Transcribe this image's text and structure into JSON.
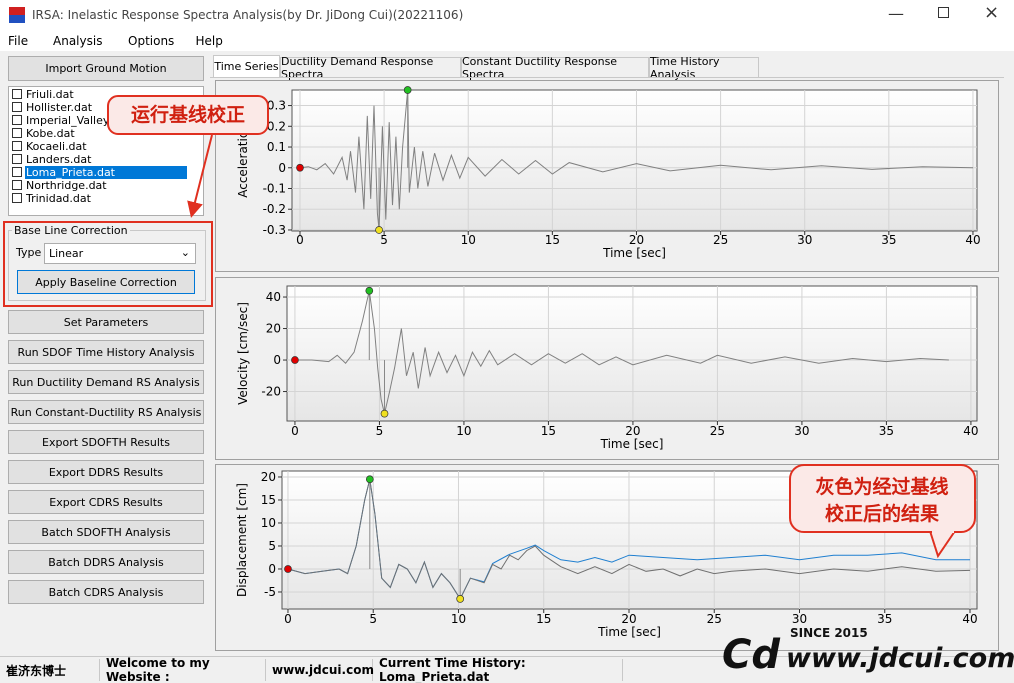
{
  "window": {
    "title": "IRSA: Inelastic Response Spectra Analysis(by Dr. JiDong Cui)(20221106)",
    "menu": [
      "File",
      "Analysis",
      "Options",
      "Help"
    ]
  },
  "sidebar": {
    "import_button": "Import Ground Motion",
    "files": [
      "Friuli.dat",
      "Hollister.dat",
      "Imperial_Valley.",
      "Kobe.dat",
      "Kocaeli.dat",
      "Landers.dat",
      "Loma_Prieta.dat",
      "Northridge.dat",
      "Trinidad.dat"
    ],
    "selected": 6,
    "baseline": {
      "title": "Base Line Correction",
      "type_label": "Type",
      "type_value": "Linear",
      "apply_button": "Apply Baseline Correction"
    },
    "buttons": [
      "Set Parameters",
      "Run SDOF Time History Analysis",
      "Run Ductility Demand RS Analysis",
      "Run Constant-Ductility RS Analysis",
      "Export SDOFTH Results",
      "Export DDRS Results",
      "Export CDRS Results",
      "Batch SDOFTH Analysis",
      "Batch DDRS Analysis",
      "Batch CDRS Analysis"
    ]
  },
  "tabs": {
    "items": [
      "Time Series",
      "Ductility Demand Response Spectra",
      "Constant Ductility Response Spectra",
      "Time History Analysis"
    ],
    "active": 0
  },
  "callouts": [
    [
      "运行基线校正"
    ],
    [
      "灰色为经过基线",
      "校正后的结果"
    ]
  ],
  "charts": [
    {
      "type": "line",
      "ylabel": "Acceleration",
      "xlabel": "Time [sec]",
      "xlim": [
        -0.475,
        40.24
      ],
      "ylim": [
        -0.305,
        0.375
      ],
      "xticks": [
        0,
        5,
        10,
        15,
        20,
        25,
        30,
        35,
        40
      ],
      "yticks": [
        0.3,
        0.2,
        0.1,
        0,
        -0.1,
        -0.2,
        -0.3
      ],
      "series": [
        {
          "color": "#808080",
          "x": [
            0,
            0.5,
            1,
            1.5,
            2,
            2.5,
            2.8,
            3,
            3.3,
            3.5,
            3.8,
            4,
            4.2,
            4.4,
            4.6,
            4.7,
            4.9,
            5.1,
            5.3,
            5.5,
            5.7,
            5.9,
            6.1,
            6.4,
            6.5,
            6.8,
            7,
            7.3,
            7.6,
            8,
            8.5,
            9,
            9.5,
            10,
            11,
            12,
            13,
            14,
            15,
            16,
            18,
            20,
            22,
            25,
            28,
            31,
            34,
            37,
            40
          ],
          "values": [
            0,
            0.005,
            -0.01,
            0.02,
            -0.03,
            0.05,
            -0.06,
            0.08,
            -0.12,
            0.15,
            -0.2,
            0.25,
            -0.15,
            0.3,
            -0.22,
            -0.3,
            0.2,
            -0.25,
            0.22,
            -0.18,
            0.15,
            -0.2,
            0.1,
            0.375,
            -0.12,
            0.1,
            -0.1,
            0.08,
            -0.09,
            0.07,
            -0.06,
            0.06,
            -0.05,
            0.05,
            -0.04,
            0.04,
            -0.03,
            0.035,
            -0.03,
            0.025,
            -0.02,
            0.02,
            -0.015,
            0.012,
            -0.01,
            0.01,
            -0.008,
            0.005,
            0
          ]
        }
      ],
      "markers": [
        {
          "x": 0,
          "y": 0,
          "color": "#e00000"
        },
        {
          "x": 6.4,
          "y": 0.375,
          "color": "#22c022"
        },
        {
          "x": 4.7,
          "y": -0.3,
          "color": "#f0e020"
        }
      ]
    },
    {
      "type": "line",
      "ylabel": "Velocity [cm/sec]",
      "xlabel": "Time [sec]",
      "xlim": [
        -0.47,
        40.36
      ],
      "ylim": [
        -38.7,
        47
      ],
      "xticks": [
        0,
        5,
        10,
        15,
        20,
        25,
        30,
        35,
        40
      ],
      "yticks": [
        40,
        20,
        0,
        -20
      ],
      "series": [
        {
          "color": "#808080",
          "x": [
            0,
            1,
            2,
            2.5,
            3,
            3.5,
            4,
            4.4,
            4.7,
            4.9,
            5.1,
            5.3,
            5.6,
            5.9,
            6.3,
            6.6,
            7,
            7.3,
            7.7,
            8,
            8.5,
            9,
            9.5,
            10,
            10.5,
            11,
            11.5,
            12,
            13,
            14,
            15,
            16,
            17,
            18,
            19,
            20,
            22,
            24,
            25,
            27,
            29,
            31,
            33,
            35,
            37,
            38.7
          ],
          "values": [
            0,
            0,
            -1,
            3,
            -2,
            5,
            25,
            44,
            20,
            -5,
            -25,
            -34,
            -20,
            -5,
            20,
            -10,
            5,
            -18,
            8,
            -10,
            5,
            -8,
            3,
            -10,
            5,
            -4,
            6,
            -3,
            4,
            -3,
            4,
            -2,
            4,
            -3,
            2,
            -3,
            3,
            -2,
            3,
            -2,
            2,
            -2,
            1,
            -1,
            1,
            0
          ]
        }
      ],
      "markers": [
        {
          "x": 0,
          "y": 0,
          "color": "#e00000"
        },
        {
          "x": 4.4,
          "y": 44,
          "color": "#22c022"
        },
        {
          "x": 5.3,
          "y": -34,
          "color": "#f0e020"
        }
      ]
    },
    {
      "type": "line",
      "ylabel": "Displacement [cm]",
      "xlabel": "Time [sec]",
      "xlim": [
        -0.35,
        40.41
      ],
      "ylim": [
        -8.7,
        21.3
      ],
      "xticks": [
        0,
        5,
        10,
        15,
        20,
        25,
        30,
        35,
        40
      ],
      "yticks": [
        20,
        15,
        10,
        5,
        0,
        -5
      ],
      "series": [
        {
          "color": "#1f7fd0",
          "x": [
            0,
            1,
            2,
            3,
            3.5,
            4,
            4.5,
            4.8,
            5.1,
            5.5,
            6,
            6.5,
            7,
            7.5,
            8,
            8.5,
            9,
            9.5,
            10.1,
            10.7,
            11.5,
            12,
            13,
            14,
            14.5,
            15,
            16,
            17,
            18,
            19,
            20,
            22,
            24,
            26,
            28,
            30,
            32,
            34,
            36,
            38,
            40
          ],
          "values": [
            0,
            -1,
            -0.5,
            0,
            -1,
            5,
            15,
            19.5,
            12,
            -2,
            -4,
            1,
            0,
            -3,
            1.5,
            -4,
            -1,
            -3,
            -6.5,
            -2,
            -2.8,
            1.2,
            3.2,
            4.5,
            5.2,
            4,
            2,
            1.5,
            2.5,
            1.5,
            3,
            2.5,
            2,
            2.5,
            3,
            2,
            3,
            3,
            3.5,
            2,
            2
          ]
        },
        {
          "color": "#707070",
          "x": [
            0,
            1,
            2,
            3,
            3.5,
            4,
            4.5,
            4.8,
            5.1,
            5.5,
            6,
            6.5,
            7,
            7.5,
            8,
            8.5,
            9,
            9.5,
            10.1,
            10.7,
            11.5,
            12,
            12.5,
            13,
            13.5,
            14,
            14.5,
            15,
            16,
            17,
            18,
            19,
            20,
            21,
            22,
            23,
            24,
            25,
            26,
            28,
            30,
            32,
            34,
            36,
            38,
            40
          ],
          "values": [
            0,
            -1,
            -0.5,
            0,
            -1,
            5,
            15,
            19.5,
            12,
            -2,
            -4,
            1,
            0,
            -3,
            1.5,
            -4,
            -1,
            -3,
            -6.5,
            -2,
            -3,
            1,
            0,
            3,
            2,
            4,
            5,
            3,
            0.5,
            -1,
            0.5,
            -1,
            1,
            -0.5,
            0,
            -1.5,
            0,
            -1,
            -0.5,
            0,
            -1,
            0,
            -0.5,
            0.5,
            -0.5,
            -0.3
          ]
        }
      ],
      "markers": [
        {
          "x": 0,
          "y": 0,
          "color": "#e00000"
        },
        {
          "x": 4.8,
          "y": 19.5,
          "color": "#22c022"
        },
        {
          "x": 10.1,
          "y": -6.5,
          "color": "#f0e020"
        }
      ]
    }
  ],
  "status": [
    "崔济东博士",
    "Welcome to my Website :",
    "www.jdcui.com",
    "Current Time History: Loma_Prieta.dat"
  ],
  "watermark": {
    "site": "www.jdcui.com",
    "since": "SINCE 2015"
  }
}
